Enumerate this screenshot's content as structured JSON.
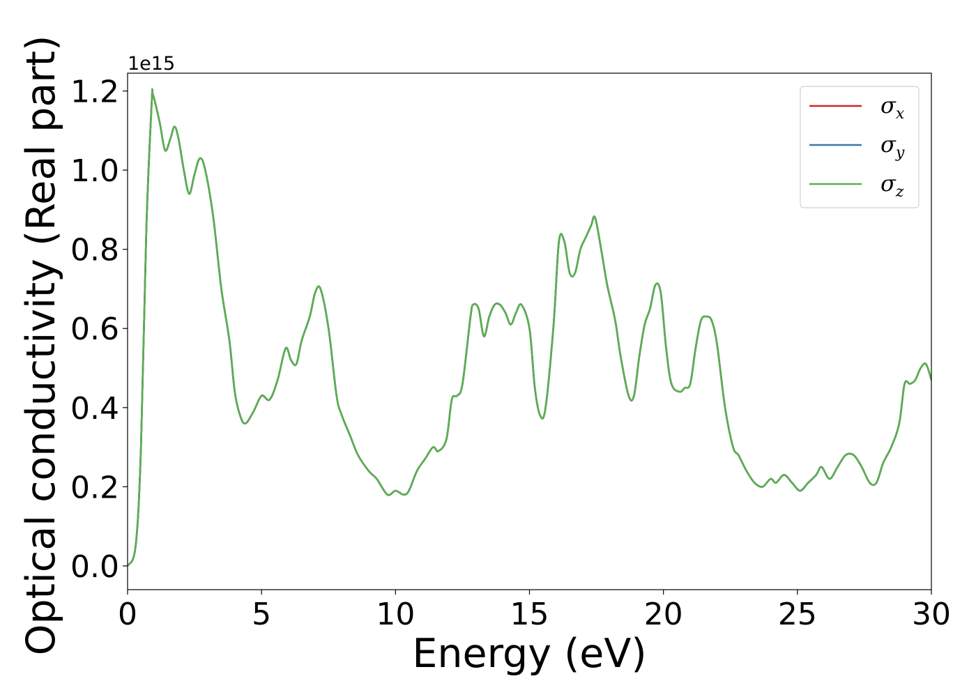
{
  "chart_data": {
    "type": "line",
    "xlabel": "Energy (eV)",
    "ylabel": "Optical conductivity (Real part)",
    "y_offset_text": "1e15",
    "xlim": [
      0,
      30
    ],
    "ylim": [
      -0.06,
      1.245
    ],
    "x_ticks": [
      "0",
      "5",
      "10",
      "15",
      "20",
      "25",
      "30"
    ],
    "y_ticks": [
      "0.0",
      "0.2",
      "0.4",
      "0.6",
      "0.8",
      "1.0",
      "1.2"
    ],
    "legend_position": "top-right",
    "grid": false,
    "x": [
      0,
      0.3,
      0.5,
      0.7,
      0.9,
      0.95,
      1.2,
      1.4,
      1.6,
      1.75,
      1.9,
      2.1,
      2.3,
      2.5,
      2.7,
      2.9,
      3.2,
      3.5,
      3.8,
      4.0,
      4.2,
      4.4,
      4.7,
      5.0,
      5.3,
      5.6,
      5.9,
      6.1,
      6.3,
      6.5,
      6.8,
      7.0,
      7.2,
      7.5,
      7.8,
      8.0,
      8.3,
      8.6,
      9.0,
      9.3,
      9.7,
      10.0,
      10.3,
      10.5,
      10.8,
      11.1,
      11.4,
      11.6,
      11.9,
      12.1,
      12.3,
      12.5,
      12.8,
      12.9,
      13.1,
      13.3,
      13.5,
      13.7,
      13.9,
      14.1,
      14.3,
      14.5,
      14.7,
      15.0,
      15.2,
      15.4,
      15.6,
      15.9,
      16.1,
      16.3,
      16.5,
      16.7,
      16.9,
      17.1,
      17.3,
      17.45,
      17.7,
      17.9,
      18.2,
      18.4,
      18.7,
      18.9,
      19.1,
      19.3,
      19.5,
      19.7,
      19.9,
      20.1,
      20.3,
      20.6,
      20.8,
      21.0,
      21.2,
      21.4,
      21.6,
      21.8,
      22.0,
      22.3,
      22.6,
      22.8,
      23.1,
      23.4,
      23.7,
      24.0,
      24.2,
      24.5,
      24.8,
      25.1,
      25.4,
      25.7,
      25.9,
      26.2,
      26.5,
      26.8,
      27.1,
      27.4,
      27.7,
      27.95,
      28.2,
      28.5,
      28.8,
      29.0,
      29.2,
      29.4,
      29.6,
      29.8,
      30.0
    ],
    "series": [
      {
        "name": "σx",
        "base": "σ",
        "subscript": "x",
        "color": "#d62728",
        "values": [
          0,
          0.05,
          0.3,
          0.85,
          1.17,
          1.19,
          1.12,
          1.05,
          1.08,
          1.11,
          1.08,
          1.0,
          0.94,
          0.99,
          1.03,
          1.0,
          0.88,
          0.7,
          0.57,
          0.44,
          0.38,
          0.36,
          0.39,
          0.43,
          0.42,
          0.47,
          0.55,
          0.52,
          0.51,
          0.57,
          0.63,
          0.69,
          0.7,
          0.6,
          0.43,
          0.38,
          0.33,
          0.28,
          0.24,
          0.22,
          0.18,
          0.19,
          0.18,
          0.19,
          0.24,
          0.27,
          0.3,
          0.29,
          0.32,
          0.42,
          0.43,
          0.46,
          0.63,
          0.66,
          0.65,
          0.58,
          0.63,
          0.66,
          0.66,
          0.64,
          0.61,
          0.64,
          0.66,
          0.6,
          0.45,
          0.38,
          0.4,
          0.61,
          0.82,
          0.82,
          0.74,
          0.74,
          0.8,
          0.83,
          0.86,
          0.88,
          0.79,
          0.71,
          0.62,
          0.53,
          0.43,
          0.43,
          0.53,
          0.61,
          0.65,
          0.71,
          0.69,
          0.55,
          0.46,
          0.44,
          0.45,
          0.46,
          0.55,
          0.62,
          0.63,
          0.62,
          0.56,
          0.4,
          0.3,
          0.28,
          0.24,
          0.21,
          0.2,
          0.22,
          0.21,
          0.23,
          0.21,
          0.19,
          0.21,
          0.23,
          0.25,
          0.22,
          0.25,
          0.28,
          0.28,
          0.25,
          0.21,
          0.21,
          0.26,
          0.3,
          0.36,
          0.46,
          0.46,
          0.47,
          0.5,
          0.51,
          0.47
        ]
      },
      {
        "name": "σy",
        "base": "σ",
        "subscript": "y",
        "color": "#3a78b0",
        "values": [
          0,
          0.05,
          0.3,
          0.85,
          1.17,
          1.19,
          1.12,
          1.05,
          1.08,
          1.11,
          1.08,
          1.0,
          0.94,
          0.99,
          1.03,
          1.0,
          0.88,
          0.7,
          0.57,
          0.44,
          0.38,
          0.36,
          0.39,
          0.43,
          0.42,
          0.47,
          0.55,
          0.52,
          0.51,
          0.57,
          0.63,
          0.69,
          0.7,
          0.6,
          0.43,
          0.38,
          0.33,
          0.28,
          0.24,
          0.22,
          0.18,
          0.19,
          0.18,
          0.19,
          0.24,
          0.27,
          0.3,
          0.29,
          0.32,
          0.42,
          0.43,
          0.46,
          0.63,
          0.66,
          0.65,
          0.58,
          0.63,
          0.66,
          0.66,
          0.64,
          0.61,
          0.64,
          0.66,
          0.6,
          0.45,
          0.38,
          0.4,
          0.61,
          0.82,
          0.82,
          0.74,
          0.74,
          0.8,
          0.83,
          0.86,
          0.88,
          0.79,
          0.71,
          0.62,
          0.53,
          0.43,
          0.43,
          0.53,
          0.61,
          0.65,
          0.71,
          0.69,
          0.55,
          0.46,
          0.44,
          0.45,
          0.46,
          0.55,
          0.62,
          0.63,
          0.62,
          0.56,
          0.4,
          0.3,
          0.28,
          0.24,
          0.21,
          0.2,
          0.22,
          0.21,
          0.23,
          0.21,
          0.19,
          0.21,
          0.23,
          0.25,
          0.22,
          0.25,
          0.28,
          0.28,
          0.25,
          0.21,
          0.21,
          0.26,
          0.3,
          0.36,
          0.46,
          0.46,
          0.47,
          0.5,
          0.51,
          0.47
        ]
      },
      {
        "name": "σz",
        "base": "σ",
        "subscript": "z",
        "color": "#5aaf50",
        "values": [
          0,
          0.05,
          0.3,
          0.85,
          1.17,
          1.19,
          1.12,
          1.05,
          1.08,
          1.11,
          1.08,
          1.0,
          0.94,
          0.99,
          1.03,
          1.0,
          0.88,
          0.7,
          0.57,
          0.44,
          0.38,
          0.36,
          0.39,
          0.43,
          0.42,
          0.47,
          0.55,
          0.52,
          0.51,
          0.57,
          0.63,
          0.69,
          0.7,
          0.6,
          0.43,
          0.38,
          0.33,
          0.28,
          0.24,
          0.22,
          0.18,
          0.19,
          0.18,
          0.19,
          0.24,
          0.27,
          0.3,
          0.29,
          0.32,
          0.42,
          0.43,
          0.46,
          0.63,
          0.66,
          0.65,
          0.58,
          0.63,
          0.66,
          0.66,
          0.64,
          0.61,
          0.64,
          0.66,
          0.6,
          0.45,
          0.38,
          0.4,
          0.61,
          0.82,
          0.82,
          0.74,
          0.74,
          0.8,
          0.83,
          0.86,
          0.88,
          0.79,
          0.71,
          0.62,
          0.53,
          0.43,
          0.43,
          0.53,
          0.61,
          0.65,
          0.71,
          0.69,
          0.55,
          0.46,
          0.44,
          0.45,
          0.46,
          0.55,
          0.62,
          0.63,
          0.62,
          0.56,
          0.4,
          0.3,
          0.28,
          0.24,
          0.21,
          0.2,
          0.22,
          0.21,
          0.23,
          0.21,
          0.19,
          0.21,
          0.23,
          0.25,
          0.22,
          0.25,
          0.28,
          0.28,
          0.25,
          0.21,
          0.21,
          0.26,
          0.3,
          0.36,
          0.46,
          0.46,
          0.47,
          0.5,
          0.51,
          0.47
        ]
      }
    ]
  }
}
